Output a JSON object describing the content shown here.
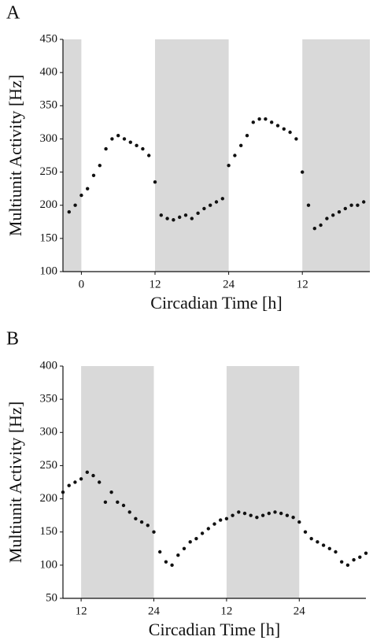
{
  "chart_data": [
    {
      "type": "scatter",
      "panel_label": "A",
      "y_label": "Multiunit Activity [Hz]",
      "x_label": "Circadian Time [h]",
      "color": "#111111",
      "shade_color": "#d9d9d9",
      "x": [
        -2,
        -1,
        0,
        1,
        2,
        3,
        4,
        5,
        6,
        7,
        8,
        9,
        10,
        11,
        12,
        13,
        14,
        15,
        16,
        17,
        18,
        19,
        20,
        21,
        22,
        23,
        24,
        25,
        26,
        27,
        28,
        29,
        30,
        31,
        32,
        33,
        34,
        35,
        36,
        37,
        38,
        39,
        40,
        41,
        42,
        43,
        44,
        45,
        46
      ],
      "values": [
        190,
        200,
        215,
        225,
        245,
        260,
        285,
        300,
        305,
        300,
        295,
        290,
        285,
        275,
        235,
        185,
        180,
        178,
        182,
        185,
        180,
        188,
        195,
        200,
        205,
        210,
        260,
        275,
        290,
        305,
        325,
        330,
        330,
        325,
        320,
        315,
        310,
        300,
        250,
        200,
        165,
        170,
        180,
        185,
        190,
        195,
        200,
        200,
        205
      ],
      "xlim": [
        -3,
        47
      ],
      "ylim": [
        100,
        450
      ],
      "xticks": [
        0,
        12,
        24,
        {
          "value": 36,
          "label": "12"
        }
      ],
      "yticks": [
        100,
        150,
        200,
        250,
        300,
        350,
        400,
        450
      ],
      "shaded": [
        [
          -3,
          0
        ],
        [
          12,
          24
        ],
        [
          36,
          47
        ]
      ]
    },
    {
      "type": "scatter",
      "panel_label": "B",
      "y_label": "Multiunit Activity [Hz]",
      "x_label": "Circadian Time [h]",
      "color": "#111111",
      "shade_color": "#d9d9d9",
      "x": [
        9,
        10,
        11,
        12,
        13,
        14,
        15,
        16,
        17,
        18,
        19,
        20,
        21,
        22,
        23,
        24,
        25,
        26,
        27,
        28,
        29,
        30,
        31,
        32,
        33,
        34,
        35,
        36,
        37,
        38,
        39,
        40,
        41,
        42,
        43,
        44,
        45,
        46,
        47,
        48,
        49,
        50,
        51,
        52,
        53,
        54,
        55,
        56,
        57,
        58,
        59
      ],
      "values": [
        210,
        220,
        225,
        230,
        240,
        235,
        225,
        195,
        210,
        195,
        190,
        180,
        170,
        165,
        160,
        150,
        120,
        105,
        100,
        115,
        125,
        135,
        140,
        148,
        155,
        162,
        168,
        170,
        175,
        180,
        178,
        175,
        172,
        175,
        178,
        180,
        178,
        175,
        172,
        165,
        150,
        140,
        135,
        130,
        125,
        120,
        105,
        100,
        108,
        112,
        118
      ],
      "xlim": [
        9,
        59
      ],
      "ylim": [
        50,
        400
      ],
      "xticks": [
        12,
        24,
        {
          "value": 36,
          "label": "12"
        },
        {
          "value": 48,
          "label": "24"
        }
      ],
      "yticks": [
        50,
        100,
        150,
        200,
        250,
        300,
        350,
        400
      ],
      "shaded": [
        [
          12,
          24
        ],
        [
          36,
          48
        ]
      ]
    }
  ]
}
